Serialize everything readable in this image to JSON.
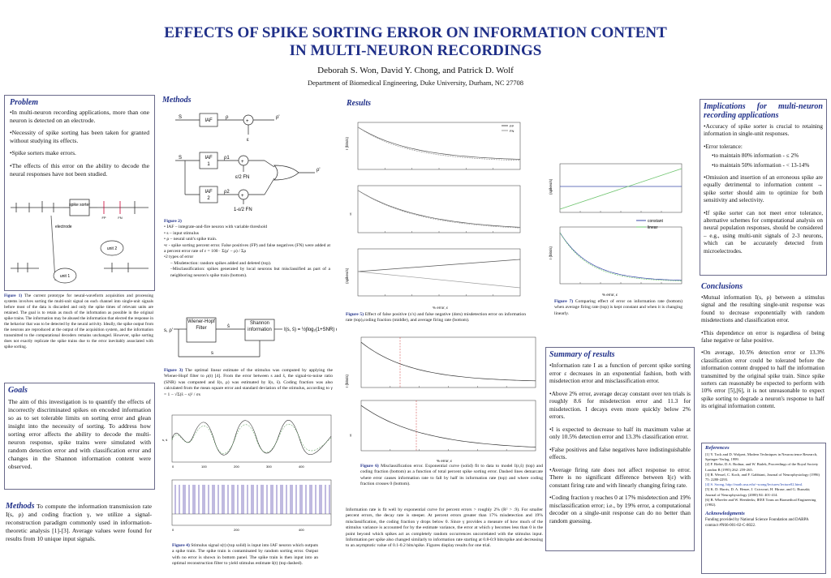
{
  "title_line1": "EFFECTS OF SPIKE SORTING ERROR ON INFORMATION CONTENT",
  "title_line2": "IN MULTI-NEURON RECORDINGS",
  "authors": "Deborah S. Won, David Y. Chong, and Patrick D. Wolf",
  "department": "Department of Biomedical Engineering, Duke University, Durham, NC 27708",
  "problem": {
    "heading": "Problem",
    "bullets": [
      "•In multi-neuron recording applications, more than one neuron is detected on an electrode.",
      "•Necessity of spike sorting has been taken for granted without studying its effects.",
      "•Spike sorters make errors.",
      "•The effects of this error on the ability to decode the neural responses have not been studied."
    ],
    "diagram": {
      "spike_sorter": "spike sorter",
      "electrode": "electrode",
      "unit1": "unit 1",
      "unit2": "unit 2",
      "fp": "FP",
      "fn": "FN"
    },
    "fig1_label": "Figure 1)",
    "fig1_caption": " The current prototype for neural-waveform acquisition and processing systems involves sorting the multi-unit signal on each channel into single-unit signals before most of the data is discarded and only the spike times of relevant units are retained. The goal is to retain as much of the information as possible in the original spike trains. The information may be abused the information that elected the response in the behavior that was to be detected by the neural activity. Ideally, the spike output from the neurons are reproduced at the output of the acquisition system, and the information transmitted to the computational decoders remains unchanged. However, spike sorting does not exactly replicate the spike trains due to the error inevitably associated with spike sorting."
  },
  "goals": {
    "heading": "Goals",
    "text": "The aim of this investigation is to quantify the effects of incorrectly discriminated spikes on encoded information so as to set tolerable limits on sorting error and glean insight into the necessity of sorting. To address how sorting error affects the ability to decode the multi-neuron response, spike trains were simulated with random detection error and with classification error and changes in the Shannon information content were observed."
  },
  "methods_left": {
    "heading": "Methods",
    "text": " To compute the information transmission rate Ι(s, ρ) and coding fraction γ, we utilize a signal-reconstruction paradigm commonly used in information-theoretic analysis [1]-[3]. Average values were found for results from 10 unique input signals."
  },
  "methods": {
    "heading": "Methods",
    "diag_labels": {
      "s": "S",
      "iaf": "IAF",
      "rho": "ρ",
      "rho_prime": "ρ'",
      "eps": "ε",
      "rho1": "ρ1",
      "rho2": "ρ2",
      "eps2fn": "ε/2 FN",
      "one_minus": "1-ε/2 FN",
      "unit1": "IAF\n1",
      "unit2": "IAF\n2"
    },
    "fig2_label": "Figure 2)",
    "fig2_items": [
      "• IAF – integrate-and-fire neuron with variable threshold",
      "• s – input stimulus",
      "• ρ – neural unit's spike train.",
      "•ε - spike sorting percent error. False positives (FP) and false negatives (FN) were added at a percent error rate of  ε = 100 · Σ(ρ' − ρ) / Σρ",
      "•2 types of error",
      "– Misdetection: random spikes added and deleted (top).",
      "–Misclassification: spikes generated by local neurons but misclassified as part of a neighboring neuron's spike train (bottom)."
    ],
    "wiener": "Wiener-Hopf Filter",
    "shannon": "Shannon information",
    "fig3_label": "Figure 3)",
    "fig3_caption": " The optimal linear estimate of the stimulus was computed by applying the Wiener-Hopf filter to ρ(t) [4]. From the error between s and ŝ, the signal-to-noise ratio (SNR) was computed and Ι(s, ρ) was estimated by Ι(s, ŝ). Coding fraction was also calculated from the mean square error and standard deviation of the stimulus, according to γ = 1 − √Σ(ŝ − s)² / σs",
    "fig4_label": "Figure 4)",
    "fig4_caption": " Stimulus signal s(t) (top solid) is input into IAF neuron which outputs a spike train. The spike train is contaminated by random sorting error. Output with no error is shown in bottom panel. The spike train is then input into an optimal reconstruction filter to yield stimulus estimate ŝ(t) (top dashed)."
  },
  "results": {
    "heading": "Results",
    "fig5_label": "Figure 5)",
    "fig5_caption": " Effect of false positive (x's) and false negative (dots) misdetection error on information rate (top),coding fraction (middle), and average firing rate (bottom).",
    "fig6_label": "Figure 6)",
    "fig6_caption": " Misclassification error. Exponential curve (solid) fit to data to model Ι(ε,ŝ) (top) and coding fraction (bottom) as a function of total percent spike sorting error. Dashed lines demarcate where error causes information rate to fall by half its information rate (top) and where coding fraction crosses 0 (bottom).",
    "fig6_text": "Information rate is fit well by exponential curve for percent errors > roughly 2% (R² > .9). For smaller percent errors, the decay rate is steeper. At percent errors greater than 17% misdetection and 19% misclassification, the coding fraction γ drops below 0. Since γ provides a measure of how much of the stimulus variance is accounted for by the estimate variance, the error at which γ becomes less than 0 is the point beyond which spikes act as completely random occurrences uncorrelated with the stimulus input. Information per spike also changed similarly to information rate starting at 0.8-0.9 bits/spike and decreasing to an asymptotic value of 0.1-0.2 bits/spike. Figures display results for one trial.",
    "fig7_label": "Figure 7)",
    "fig7_caption": " Comparing effect of error on information rate (bottom) when average firing rate (top) is kept constant and when it is changing linearly.",
    "legend_fp": "FP",
    "legend_fn": "FN",
    "legend_constant": "constant",
    "legend_linear": "linear",
    "xlabel_eps": "% error, ε",
    "ylabel_bits": "Ι (bits/s)",
    "ylabel_gamma": "γ",
    "ylabel_spikes": "(spikes/s)"
  },
  "summary": {
    "heading": "Summary of results",
    "bullets": [
      "•Information rate Ι as a function of percent spike sorting error ε decreases in an exponential fashion, both with misdetection error and misclassification error.",
      "•Above 2% error, average decay constant over ten trials is roughly 8.6 for misdetection error and 11.3 for misdetection. Ι decays even more quickly below 2% errors.",
      "•Ι is expected to decrease to half its maximum value at only 10.5% detection error and 13.3% classification error.",
      "•False positives and false negatives have indistinguishable effects.",
      "•Average firing rate does not affect response to error. There is no significant difference between Ι(ε) with constant firing rate and with linearly changing firing rate.",
      "•Coding fraction γ reaches 0 at 17% misdetection and 19% misclassification error; i.e., by 19% error, a computational decoder on a single-unit response can do no better than random guessing."
    ]
  },
  "implications": {
    "heading": "Implications for multi-neuron recording applications",
    "bullets": [
      "•Accuracy of spike sorter is crucial to retaining information in single-unit responses.",
      "•Error tolerance:",
      "•to maintain 80% information - ≤ 2%",
      "•to maintain 50% information - < 13-14%",
      "•Omission and insertion of an erroneous spike are equally detrimental to information content → spike sorter should aim to optimize for both sensitivity and selectivity.",
      "•If spike sorter can not meet error tolerance, alternative schemes for computational analysis on neural population responses, should be considered – e.g., using multi-unit signals of 2-3 neurons, which can be accurately detected from microelectrodes."
    ]
  },
  "conclusions": {
    "heading": "Conclusions",
    "bullets": [
      "•Mutual information Ι(s, ρ) between a stimulus signal and the resulting single-unit response was found to decrease exponentially with random misdetections and classification error.",
      "•This dependence on error is regardless of being false negative or false positive.",
      "•On average, 10.5% detection error or 13.3% classification error could be tolerated before the information content dropped to half the information transmitted by the original spike train. Since spike sorters can reasonably be expected to perform with 10% error [5],[6], it is not unreasonable to expect spike sorting to degrade a neuron's response to half its original information content."
    ]
  },
  "references": {
    "heading": "References",
    "items": [
      "[1] F. Rieke, D. Warland, R. de Ruyter van Steveninck, and W. Bialek, Spikes: Exploring the Neural Code. Cambridge, MA: MIT Press, 1997.",
      "[1] Y. Tock and D. Wolpert, Modern Techniques in Neuroscience Research, Springer-Verlag, 1999.",
      "[2] F. Rieke, D.A. Bodnar, and W. Bialek, Proceedings of the Royal Society London B (1995) 262: 259-265.",
      "[3] R. Wessel, C. Koch, and F. Gabbiani, Journal of Neurophysiology (1996) 75: 2280-2293.",
      "[4] S. Soong, http://math.usu.edu/~soong/lectures/lecture02.html.",
      "[5] K. D. Harris, D. A. Henze, J. Csicsvari, H. Hirase, and G. Buzsaki; Journal of Neurophysiology (2000) 84: 401-414.",
      "[6] B. Wheeler and W. Heetderks; IEEE Trans on Biomedical Engineering (1982)."
    ]
  },
  "acknowledgments": {
    "heading": "Acknowledgments",
    "text": "Funding provided by National Science Foundation and DARPA contract #N66-001-02-C-8022."
  }
}
